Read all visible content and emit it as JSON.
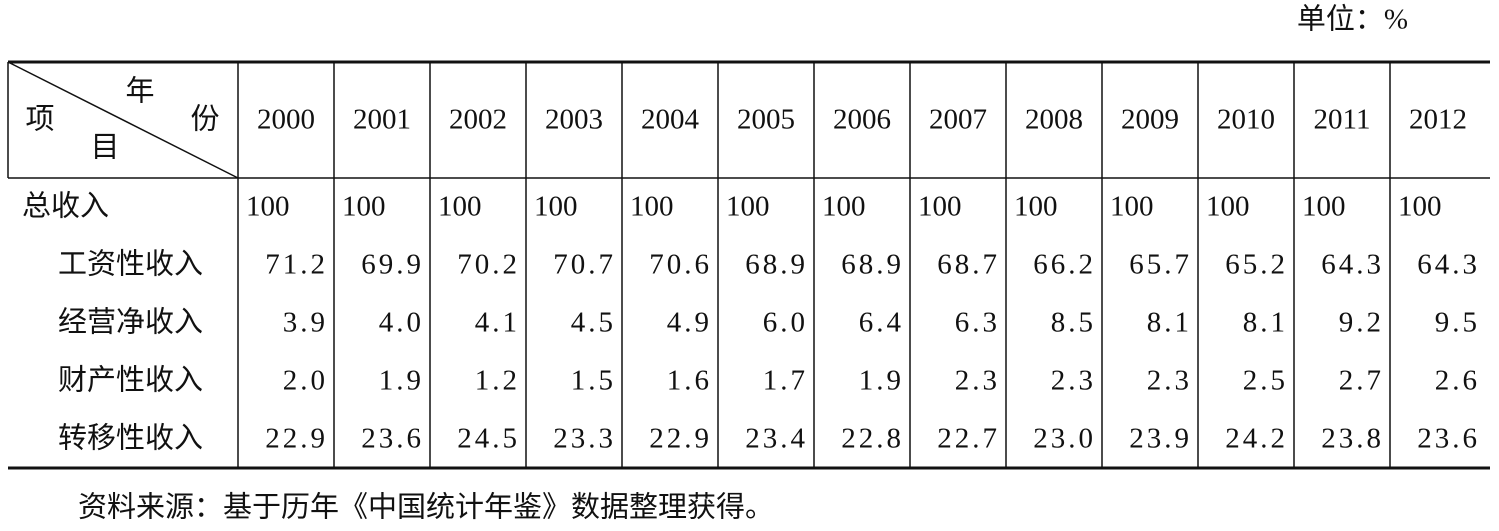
{
  "unit": "单位：%",
  "table": {
    "corner": {
      "top": "年",
      "right": "份",
      "left": "项",
      "bottom": "目"
    },
    "years": [
      "2000",
      "2001",
      "2002",
      "2003",
      "2004",
      "2005",
      "2006",
      "2007",
      "2008",
      "2009",
      "2010",
      "2011",
      "2012"
    ],
    "rows": [
      {
        "label": "总收入",
        "values": [
          "100",
          "100",
          "100",
          "100",
          "100",
          "100",
          "100",
          "100",
          "100",
          "100",
          "100",
          "100",
          "100"
        ]
      },
      {
        "label": "工资性收入",
        "values": [
          "71.2",
          "69.9",
          "70.2",
          "70.7",
          "70.6",
          "68.9",
          "68.9",
          "68.7",
          "66.2",
          "65.7",
          "65.2",
          "64.3",
          "64.3"
        ]
      },
      {
        "label": "经营净收入",
        "values": [
          "3.9",
          "4.0",
          "4.1",
          "4.5",
          "4.9",
          "6.0",
          "6.4",
          "6.3",
          "8.5",
          "8.1",
          "8.1",
          "9.2",
          "9.5"
        ]
      },
      {
        "label": "财产性收入",
        "values": [
          "2.0",
          "1.9",
          "1.2",
          "1.5",
          "1.6",
          "1.7",
          "1.9",
          "2.3",
          "2.3",
          "2.3",
          "2.5",
          "2.7",
          "2.6"
        ]
      },
      {
        "label": "转移性收入",
        "values": [
          "22.9",
          "23.6",
          "24.5",
          "23.3",
          "22.9",
          "23.4",
          "22.8",
          "22.7",
          "23.0",
          "23.9",
          "24.2",
          "23.8",
          "23.6"
        ]
      }
    ]
  },
  "source": "资料来源：基于历年《中国统计年鉴》数据整理获得。"
}
